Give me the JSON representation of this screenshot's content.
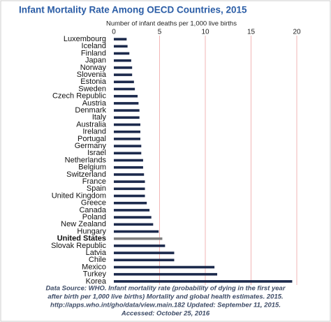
{
  "chart_data": {
    "type": "barh",
    "title": "Infant Mortality Rate Among OECD Countries, 2015",
    "x_label": "Number of infant deaths per 1,000 live births",
    "categories": [
      "Luxembourg",
      "Iceland",
      "Finland",
      "Japan",
      "Norway",
      "Slovenia",
      "Estonia",
      "Sweden",
      "Czech Republic",
      "Austria",
      "Denmark",
      "Italy",
      "Australia",
      "Ireland",
      "Portugal",
      "Germany",
      "Israel",
      "Netherlands",
      "Belgium",
      "Switzerland",
      "France",
      "Spain",
      "United Kingdom",
      "Greece",
      "Canada",
      "Poland",
      "New Zealand",
      "Hungary",
      "United States",
      "Slovak Republic",
      "Latvia",
      "Chile",
      "Mexico",
      "Turkey",
      "Korea"
    ],
    "values": [
      1.4,
      1.5,
      1.7,
      1.9,
      2.0,
      2.0,
      2.2,
      2.3,
      2.6,
      2.7,
      2.8,
      2.8,
      2.9,
      2.9,
      2.9,
      3.0,
      3.0,
      3.2,
      3.2,
      3.3,
      3.4,
      3.4,
      3.4,
      3.6,
      3.9,
      4.1,
      4.3,
      4.9,
      5.3,
      5.6,
      6.6,
      6.6,
      11.0,
      11.3,
      19.5
    ],
    "color": "#1c2a4c",
    "highlight": [
      28
    ],
    "highlight_color": "#7f7f7f",
    "xlim": [
      0,
      20
    ],
    "xticks": [
      0,
      5,
      10,
      15,
      20
    ],
    "grid": true,
    "grid_color": "#f2b6b6",
    "note": [
      "Data Source: WHO. Infant mortality rate (probability of dying in the first year",
      "after birth per 1,000 live births) Mortality and global health estimates. 2015.",
      "http://apps.who.int/gho/data/view.main.182 Updated: September 11, 2015.",
      "Accessed: October 25, 2016"
    ]
  }
}
